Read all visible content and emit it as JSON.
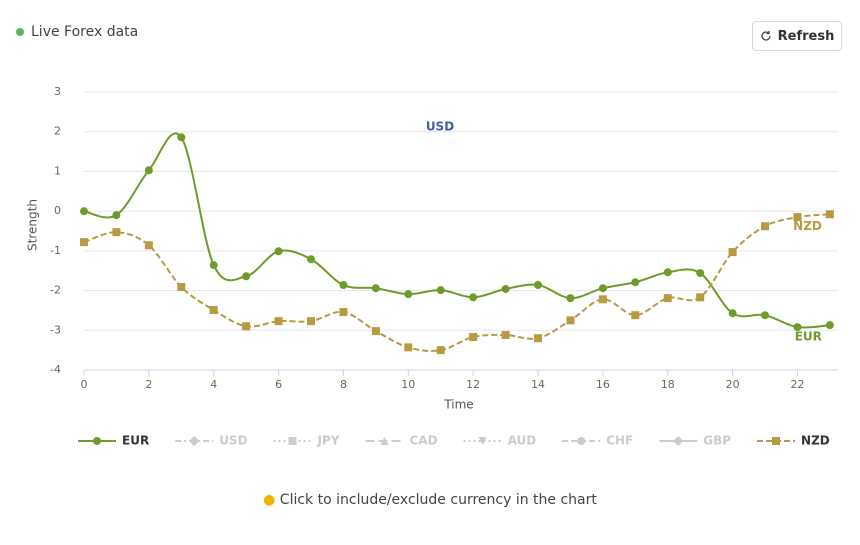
{
  "header": {
    "status": "Live Forex data",
    "button": "Refresh"
  },
  "hint": "Click to include/exclude currency in the chart",
  "chart_data": {
    "type": "line",
    "x_label": "Time",
    "y_label": "Strength",
    "x": [
      0,
      1,
      2,
      3,
      4,
      5,
      6,
      7,
      8,
      9,
      10,
      11,
      12,
      13,
      14,
      15,
      16,
      17,
      18,
      19,
      20,
      21,
      22,
      23
    ],
    "xlim": [
      0,
      23.25
    ],
    "xticks": [
      0,
      2,
      4,
      6,
      8,
      10,
      12,
      14,
      16,
      18,
      20,
      22
    ],
    "ylim": [
      -4,
      3
    ],
    "yticks": [
      -4,
      -3,
      -2,
      -1,
      0,
      1,
      2,
      3
    ],
    "grid": true,
    "series": [
      {
        "name": "EUR",
        "color": "#6f9a2c",
        "visible": true,
        "marker": "circle",
        "dash": "solid",
        "values": [
          0,
          -0.1,
          1.03,
          1.86,
          -1.36,
          -1.64,
          -1.01,
          -1.21,
          -1.86,
          -1.94,
          -2.09,
          -1.99,
          -2.17,
          -1.96,
          -1.86,
          -2.19,
          -1.94,
          -1.79,
          -1.54,
          -1.56,
          -2.57,
          -2.62,
          -2.92,
          -2.87
        ]
      },
      {
        "name": "USD",
        "color": "#3a5fa0",
        "visible": false,
        "marker": "diamond",
        "dash": "dashdot"
      },
      {
        "name": "JPY",
        "color": "#cccccc",
        "visible": false,
        "marker": "square",
        "dash": "dot"
      },
      {
        "name": "CAD",
        "color": "#cccccc",
        "visible": false,
        "marker": "triangle",
        "dash": "longdash"
      },
      {
        "name": "AUD",
        "color": "#cccccc",
        "visible": false,
        "marker": "triangle-down",
        "dash": "dot"
      },
      {
        "name": "CHF",
        "color": "#cccccc",
        "visible": false,
        "marker": "circle",
        "dash": "dash"
      },
      {
        "name": "GBP",
        "color": "#cccccc",
        "visible": false,
        "marker": "diamond",
        "dash": "solid"
      },
      {
        "name": "NZD",
        "color": "#b89a43",
        "visible": true,
        "marker": "square",
        "dash": "dash",
        "values": [
          -0.78,
          -0.53,
          -0.86,
          -1.91,
          -2.49,
          -2.9,
          -2.77,
          -2.77,
          -2.54,
          -3.02,
          -3.43,
          -3.5,
          -3.17,
          -3.12,
          -3.2,
          -2.75,
          -2.22,
          -2.62,
          -2.19,
          -2.17,
          -1.03,
          -0.38,
          -0.15,
          -0.08
        ]
      }
    ]
  }
}
